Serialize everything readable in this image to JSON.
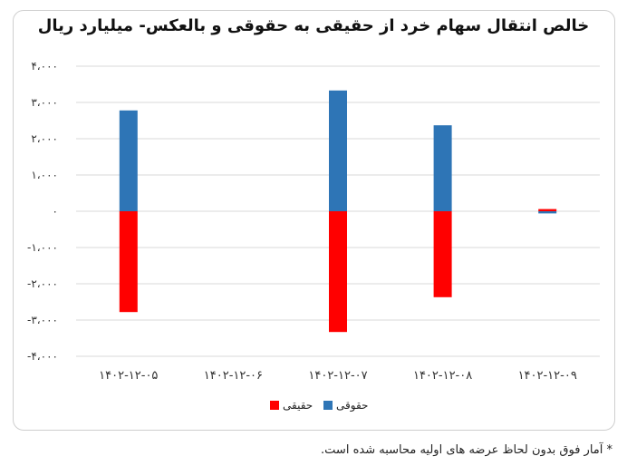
{
  "chart_data": {
    "type": "bar",
    "title": "خالص انتقال سهام خرد از حقیقی به حقوقی و بالعکس- میلیارد ریال",
    "categories": [
      "۱۴۰۲-۱۲-۰۵",
      "۱۴۰۲-۱۲-۰۶",
      "۱۴۰۲-۱۲-۰۷",
      "۱۴۰۲-۱۲-۰۸",
      "۱۴۰۲-۱۲-۰۹"
    ],
    "series": [
      {
        "name": "حقیقی",
        "color": "#ff0000",
        "values": [
          -2780,
          0,
          -3330,
          -2370,
          60
        ]
      },
      {
        "name": "حقوقی",
        "color": "#2e75b6",
        "values": [
          2780,
          0,
          3330,
          2370,
          -60
        ]
      }
    ],
    "yticks": [
      4000,
      3000,
      2000,
      1000,
      0,
      -1000,
      -2000,
      -3000,
      -4000
    ],
    "ytick_labels": [
      "۴،۰۰۰",
      "۳،۰۰۰",
      "۲،۰۰۰",
      "۱،۰۰۰",
      "۰",
      "-۱،۰۰۰",
      "-۲،۰۰۰",
      "-۳،۰۰۰",
      "-۴،۰۰۰"
    ],
    "ylim": [
      -4000,
      4000
    ],
    "xlabel": "",
    "ylabel": "",
    "grid": true,
    "legend": "bottom-center"
  },
  "footnote": "* آمار فوق بدون لحاظ عرضه های اولیه محاسبه شده است."
}
